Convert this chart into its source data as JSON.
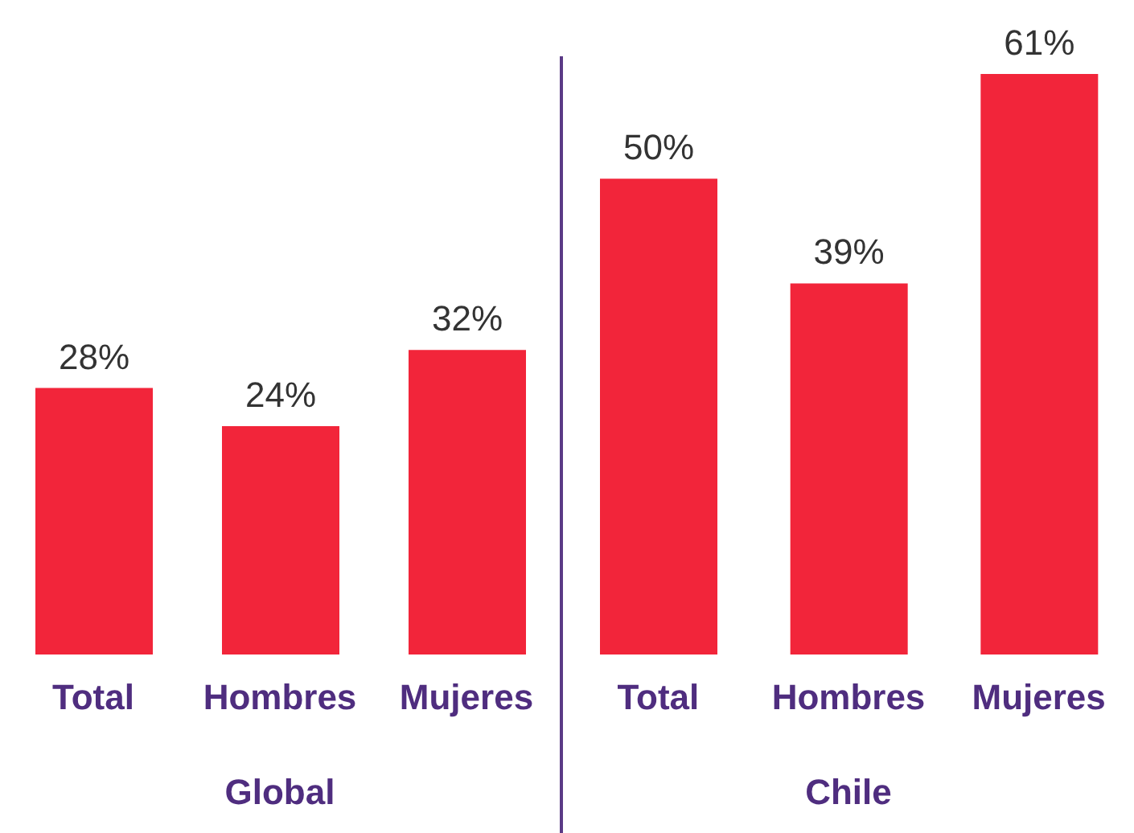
{
  "chart_data": [
    {
      "type": "bar",
      "xlabel": "Global",
      "categories": [
        "Total",
        "Hombres",
        "Mujeres"
      ],
      "values": [
        28,
        24,
        32
      ],
      "value_labels": [
        "28%",
        "24%",
        "32%"
      ],
      "color": "#f2253a",
      "tick_labels": "x"
    },
    {
      "type": "bar",
      "xlabel": "Chile",
      "categories": [
        "Total",
        "Hombres",
        "Mujeres"
      ],
      "values": [
        50,
        39,
        61
      ],
      "value_labels": [
        "50%",
        "39%",
        "61%"
      ],
      "color": "#f2253a",
      "tick_labels": "x"
    }
  ]
}
